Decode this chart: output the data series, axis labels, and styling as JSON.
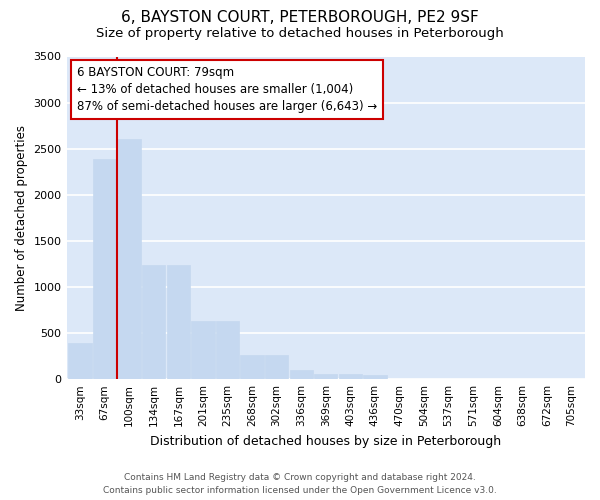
{
  "title": "6, BAYSTON COURT, PETERBOROUGH, PE2 9SF",
  "subtitle": "Size of property relative to detached houses in Peterborough",
  "xlabel": "Distribution of detached houses by size in Peterborough",
  "ylabel": "Number of detached properties",
  "categories": [
    "33sqm",
    "67sqm",
    "100sqm",
    "134sqm",
    "167sqm",
    "201sqm",
    "235sqm",
    "268sqm",
    "302sqm",
    "336sqm",
    "369sqm",
    "403sqm",
    "436sqm",
    "470sqm",
    "504sqm",
    "537sqm",
    "571sqm",
    "604sqm",
    "638sqm",
    "672sqm",
    "705sqm"
  ],
  "values": [
    390,
    2390,
    2610,
    1240,
    1240,
    630,
    630,
    260,
    260,
    100,
    55,
    55,
    40,
    0,
    0,
    0,
    0,
    0,
    0,
    0,
    0
  ],
  "bar_color": "#c5d8f0",
  "background_color": "#dce8f8",
  "grid_color": "#ffffff",
  "red_line_x": 1.5,
  "annotation_text": "6 BAYSTON COURT: 79sqm\n← 13% of detached houses are smaller (1,004)\n87% of semi-detached houses are larger (6,643) →",
  "annotation_box_color": "#ffffff",
  "annotation_border_color": "#cc0000",
  "ylim": [
    0,
    3500
  ],
  "yticks": [
    0,
    500,
    1000,
    1500,
    2000,
    2500,
    3000,
    3500
  ],
  "footer_line1": "Contains HM Land Registry data © Crown copyright and database right 2024.",
  "footer_line2": "Contains public sector information licensed under the Open Government Licence v3.0.",
  "title_fontsize": 11,
  "subtitle_fontsize": 9.5,
  "tick_label_fontsize": 7.5,
  "ylabel_fontsize": 8.5,
  "xlabel_fontsize": 9,
  "ann_fontsize": 8.5,
  "footer_fontsize": 6.5
}
